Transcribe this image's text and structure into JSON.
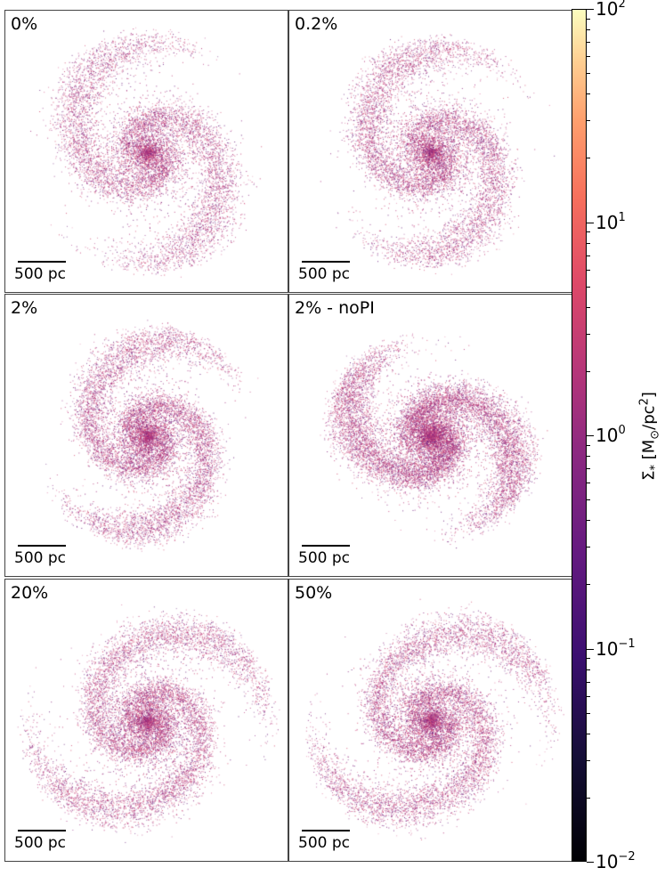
{
  "chart_data": {
    "type": "heatmap",
    "description_type": "stellar surface density maps",
    "panels": [
      {
        "label": "0%",
        "scalebar": "500 pc",
        "arm_winding": 2.4,
        "spread": 0.95,
        "density": 1.0
      },
      {
        "label": "0.2%",
        "scalebar": "500 pc",
        "arm_winding": 2.6,
        "spread": 0.9,
        "density": 1.05
      },
      {
        "label": "2%",
        "scalebar": "500 pc",
        "arm_winding": 2.8,
        "spread": 0.85,
        "density": 1.15
      },
      {
        "label": "2% - noPI",
        "scalebar": "500 pc",
        "arm_winding": 2.2,
        "spread": 0.8,
        "density": 1.5
      },
      {
        "label": "20%",
        "scalebar": "500 pc",
        "arm_winding": 3.0,
        "spread": 0.95,
        "density": 1.2
      },
      {
        "label": "50%",
        "scalebar": "500 pc",
        "arm_winding": 3.0,
        "spread": 0.95,
        "density": 1.2
      }
    ],
    "colorbar": {
      "label": "Σ* [M⊙/pc²]",
      "scale": "log",
      "range": [
        0.01,
        100
      ],
      "colormap": "magma",
      "ticks": [
        {
          "value": 100,
          "base": "10",
          "exp": "2"
        },
        {
          "value": 10,
          "base": "10",
          "exp": "1"
        },
        {
          "value": 1,
          "base": "10",
          "exp": "0"
        },
        {
          "value": 0.1,
          "base": "10",
          "exp": "−1"
        },
        {
          "value": 0.01,
          "base": "10",
          "exp": "−2"
        }
      ]
    }
  }
}
